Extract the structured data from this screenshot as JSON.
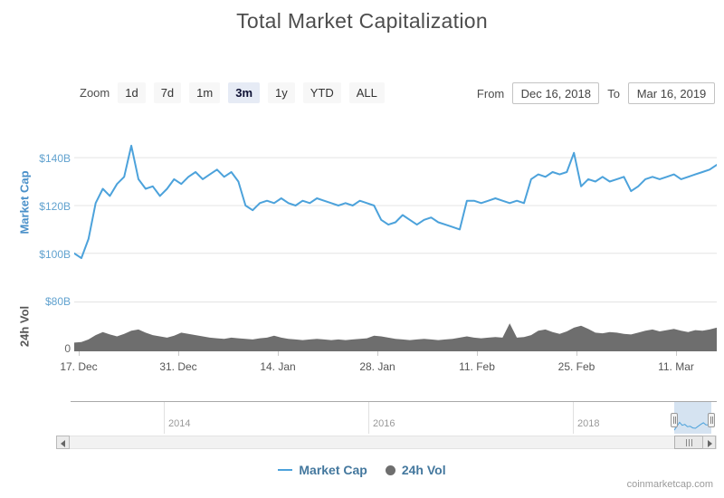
{
  "page": {
    "title": "Total Market Capitalization",
    "watermark": "coinmarketcap.com"
  },
  "controls": {
    "zoom_label": "Zoom",
    "zoom_buttons": [
      {
        "label": "1d",
        "selected": false
      },
      {
        "label": "7d",
        "selected": false
      },
      {
        "label": "1m",
        "selected": false
      },
      {
        "label": "3m",
        "selected": true
      },
      {
        "label": "1y",
        "selected": false
      },
      {
        "label": "YTD",
        "selected": false
      },
      {
        "label": "ALL",
        "selected": false
      }
    ],
    "from_label": "From",
    "from_value": "Dec 16, 2018",
    "to_label": "To",
    "to_value": "Mar 16, 2019"
  },
  "colors": {
    "line": "#4ca2db",
    "volume_fill": "#6e6e6e",
    "grid": "#e4e4e4",
    "y_label_blue": "#61a2cf",
    "axis_title_blue": "#4a90c9",
    "legend_text": "#44789e",
    "selection_fill": "rgba(135,175,215,0.35)"
  },
  "chart_data": {
    "type": "line",
    "title": "Total Market Capitalization",
    "x_range": [
      "Dec 16, 2018",
      "Mar 16, 2019"
    ],
    "x_tick_labels": [
      "17. Dec",
      "31. Dec",
      "14. Jan",
      "28. Jan",
      "11. Feb",
      "25. Feb",
      "11. Mar"
    ],
    "panes": [
      {
        "name": "Market Cap",
        "type": "line",
        "ylabel": "Market Cap",
        "unit": "$B",
        "yticks": [
          "$140B",
          "$120B",
          "$100B"
        ],
        "ytick_values": [
          140,
          120,
          100
        ],
        "ylim": [
          95,
          148
        ],
        "values": [
          100,
          98,
          106,
          121,
          127,
          124,
          129,
          132,
          145,
          131,
          127,
          128,
          124,
          127,
          131,
          129,
          132,
          134,
          131,
          133,
          135,
          132,
          134,
          130,
          120,
          118,
          121,
          122,
          121,
          123,
          121,
          120,
          122,
          121,
          123,
          122,
          121,
          120,
          121,
          120,
          122,
          121,
          120,
          114,
          112,
          113,
          116,
          114,
          112,
          114,
          115,
          113,
          112,
          111,
          110,
          122,
          122,
          121,
          122,
          123,
          122,
          121,
          122,
          121,
          131,
          133,
          132,
          134,
          133,
          134,
          142,
          128,
          131,
          130,
          132,
          130,
          131,
          132,
          126,
          128,
          131,
          132,
          131,
          132,
          133,
          131,
          132,
          133,
          134,
          135,
          137
        ]
      },
      {
        "name": "24h Vol",
        "type": "area",
        "ylabel": "24h Vol",
        "unit": "$B",
        "yticks": [
          "$80B",
          "0"
        ],
        "ytick_values": [
          80,
          0
        ],
        "ylim": [
          0,
          80
        ],
        "values": [
          14,
          15,
          19,
          26,
          31,
          27,
          24,
          28,
          33,
          35,
          30,
          26,
          24,
          22,
          25,
          30,
          28,
          26,
          24,
          22,
          21,
          20,
          22,
          21,
          20,
          19,
          21,
          22,
          25,
          22,
          20,
          19,
          18,
          19,
          20,
          19,
          18,
          19,
          18,
          19,
          20,
          21,
          25,
          24,
          22,
          20,
          19,
          18,
          19,
          20,
          19,
          18,
          19,
          20,
          22,
          24,
          22,
          21,
          22,
          23,
          22,
          45,
          22,
          23,
          26,
          33,
          35,
          31,
          28,
          32,
          38,
          41,
          36,
          30,
          29,
          31,
          30,
          28,
          27,
          30,
          33,
          35,
          32,
          34,
          36,
          33,
          31,
          34,
          33,
          35,
          38
        ]
      }
    ],
    "navigator": {
      "tick_labels": [
        "2014",
        "2016",
        "2018"
      ],
      "mini_values": [
        100,
        121,
        145,
        128,
        133,
        120,
        122,
        113,
        111,
        122,
        133,
        142,
        130,
        131,
        137
      ]
    }
  },
  "legend": {
    "items": [
      {
        "label": "Market Cap",
        "marker": "line"
      },
      {
        "label": "24h Vol",
        "marker": "circle"
      }
    ]
  }
}
